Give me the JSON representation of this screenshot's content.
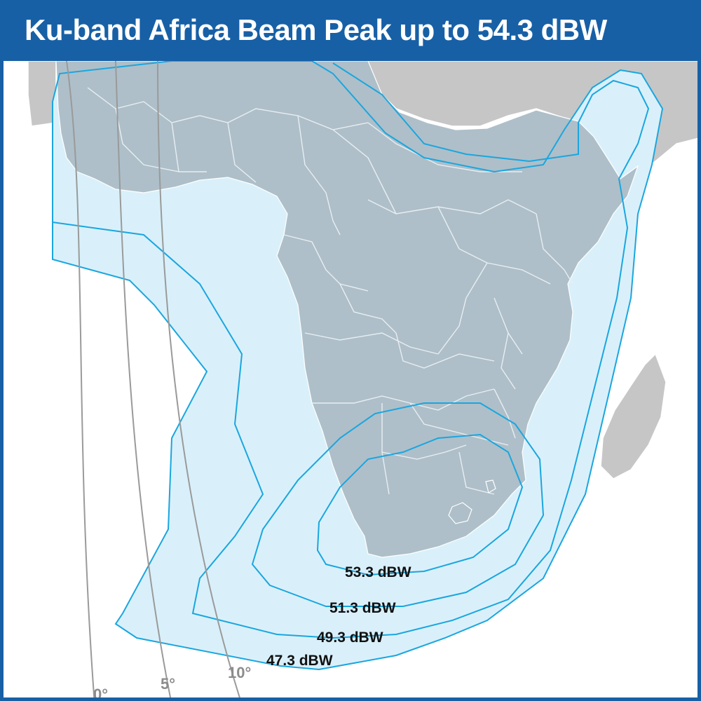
{
  "title": "Ku-band Africa Beam Peak up to 54.3 dBW",
  "contours": [
    {
      "label": "53.3 dBW",
      "value": 53.3
    },
    {
      "label": "51.3 dBW",
      "value": 51.3
    },
    {
      "label": "49.3 dBW",
      "value": 49.3
    },
    {
      "label": "47.3 dBW",
      "value": 47.3
    }
  ],
  "longitude_arcs": [
    {
      "label": "0°"
    },
    {
      "label": "5°"
    },
    {
      "label": "10°"
    }
  ],
  "colors": {
    "header": "#1760a6",
    "land_in_beam": "#aebfc9",
    "land_outside": "#c6c6c6",
    "beam_fill": "#d9f0fa",
    "contour_line": "#1aa6df",
    "border_line": "#e8eef2",
    "longitude_arc": "#9a9a9a"
  },
  "icons": {
    "madagascar": "island-shape",
    "arabia": "landmass-shape"
  }
}
